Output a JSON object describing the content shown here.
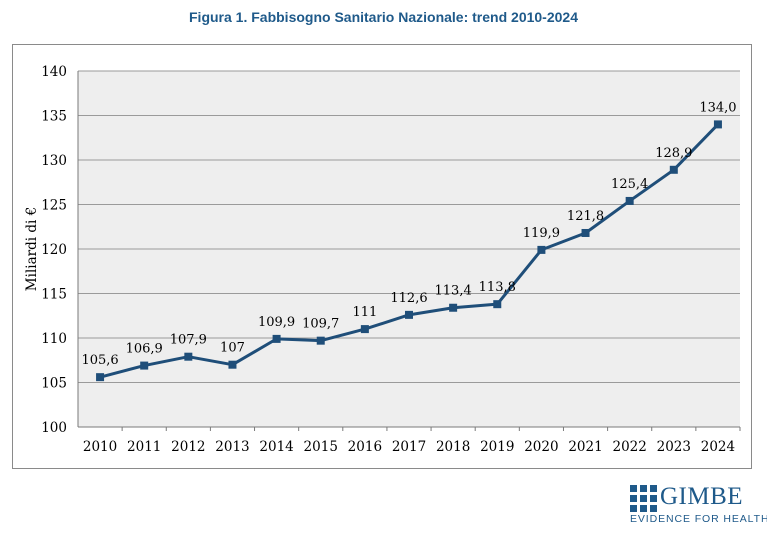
{
  "title": "Figura 1. Fabbisogno Sanitario Nazionale: trend 2010-2024",
  "logo": {
    "name": "GIMBE",
    "tagline": "EVIDENCE FOR HEALTH"
  },
  "colors": {
    "title": "#1f5a8a",
    "series": "#1f4e79",
    "plot_bg": "#eeeeee",
    "grid": "#9a9a9a"
  },
  "chart_data": {
    "type": "line",
    "title": "Figura 1. Fabbisogno Sanitario Nazionale: trend 2010-2024",
    "xlabel": "",
    "ylabel": "Miliardi di €",
    "ylim": [
      100,
      140
    ],
    "yticks": [
      "100",
      "105",
      "110",
      "115",
      "120",
      "125",
      "130",
      "135",
      "140"
    ],
    "grid": true,
    "legend": "none",
    "categories": [
      "2010",
      "2011",
      "2012",
      "2013",
      "2014",
      "2015",
      "2016",
      "2017",
      "2018",
      "2019",
      "2020",
      "2021",
      "2022",
      "2023",
      "2024"
    ],
    "series": [
      {
        "values": [
          105.6,
          106.9,
          107.9,
          107,
          109.9,
          109.7,
          111,
          112.6,
          113.4,
          113.8,
          119.9,
          121.8,
          125.4,
          128.9,
          134.0
        ],
        "labels": [
          "105,6",
          "106,9",
          "107,9",
          "107",
          "109,9",
          "109,7",
          "111",
          "112,6",
          "113,4",
          "113,8",
          "119,9",
          "121,8",
          "125,4",
          "128,9",
          "134,0"
        ],
        "marker": "square"
      }
    ]
  }
}
